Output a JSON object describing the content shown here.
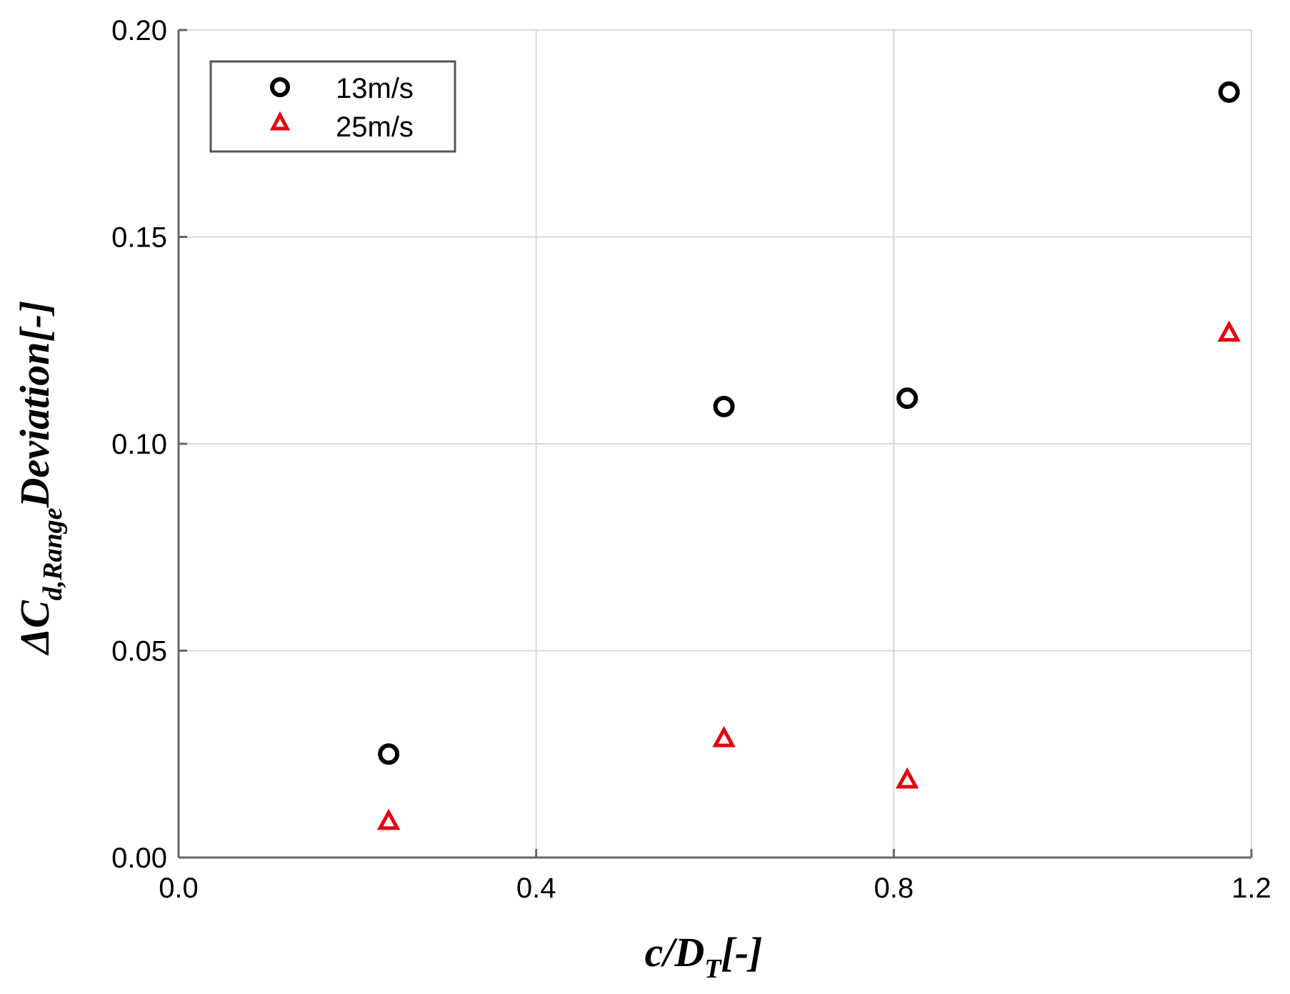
{
  "chart_data": {
    "type": "scatter",
    "xlim": [
      0.0,
      1.2
    ],
    "ylim": [
      0.0,
      0.2
    ],
    "x_ticks": [
      "0.0",
      "0.4",
      "0.8",
      "1.2"
    ],
    "y_ticks": [
      "0.00",
      "0.05",
      "0.10",
      "0.15",
      "0.20"
    ],
    "x_tick_values": [
      0.0,
      0.4,
      0.8,
      1.2
    ],
    "y_tick_values": [
      0.0,
      0.05,
      0.1,
      0.15,
      0.2
    ],
    "grid": true,
    "legend_position": "top-left",
    "xlabel": {
      "main": "c/D",
      "sub": "T",
      "suffix": "[-]"
    },
    "ylabel": {
      "prefix": "ΔC",
      "sub": "d,Range",
      "suffix": "Deviation[-]"
    },
    "series": [
      {
        "name": "13m/s",
        "marker": "circle-open",
        "color": "#000000",
        "x": [
          0.235,
          0.61,
          0.815,
          1.175
        ],
        "y": [
          0.025,
          0.109,
          0.111,
          0.185
        ]
      },
      {
        "name": "25m/s",
        "marker": "triangle-open",
        "color": "#e8000b",
        "x": [
          0.235,
          0.61,
          0.815,
          1.175
        ],
        "y": [
          0.009,
          0.029,
          0.019,
          0.127
        ]
      }
    ]
  }
}
